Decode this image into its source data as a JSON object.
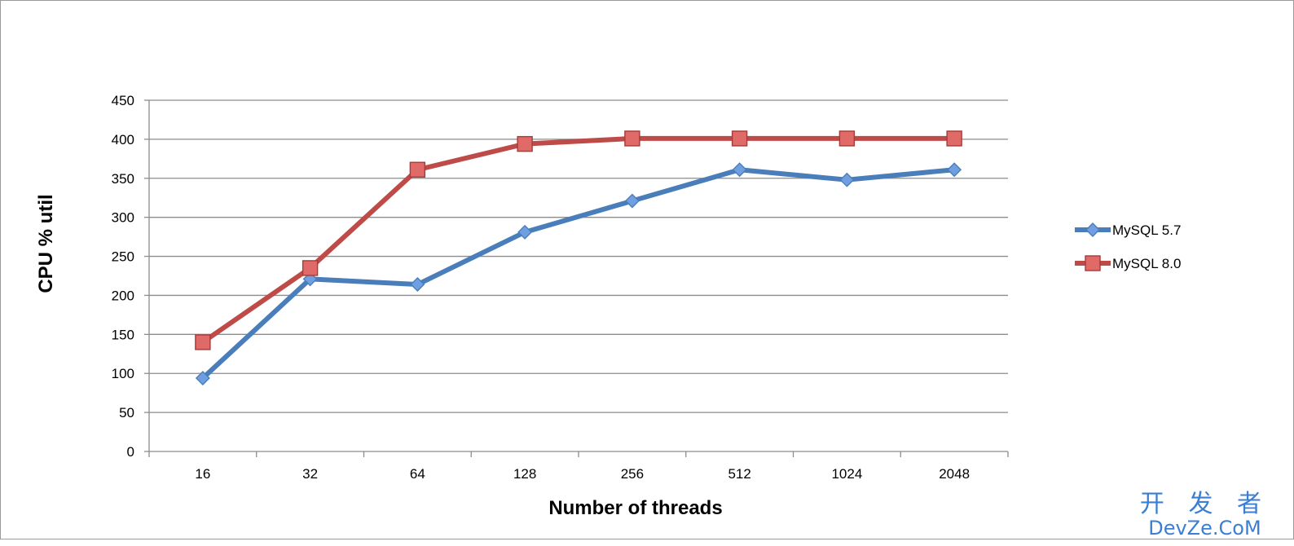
{
  "chart_data": {
    "type": "line",
    "title": "",
    "xlabel": "Number of threads",
    "ylabel": "CPU % util",
    "categories": [
      "16",
      "32",
      "64",
      "128",
      "256",
      "512",
      "1024",
      "2048"
    ],
    "ylim": [
      0,
      450
    ],
    "yticks": [
      0,
      50,
      100,
      150,
      200,
      250,
      300,
      350,
      400,
      450
    ],
    "grid": true,
    "legend_position": "right",
    "series": [
      {
        "name": "MySQL 5.7",
        "color": "#4a7ebb",
        "marker": "diamond",
        "values": [
          94,
          221,
          214,
          281,
          321,
          361,
          348,
          361
        ]
      },
      {
        "name": "MySQL 8.0",
        "color": "#be4b48",
        "marker": "square",
        "values": [
          140,
          235,
          361,
          394,
          401,
          401,
          401,
          401
        ]
      }
    ]
  },
  "watermark": {
    "line1": "开 发 者",
    "line2": "DevZe.CoM"
  }
}
